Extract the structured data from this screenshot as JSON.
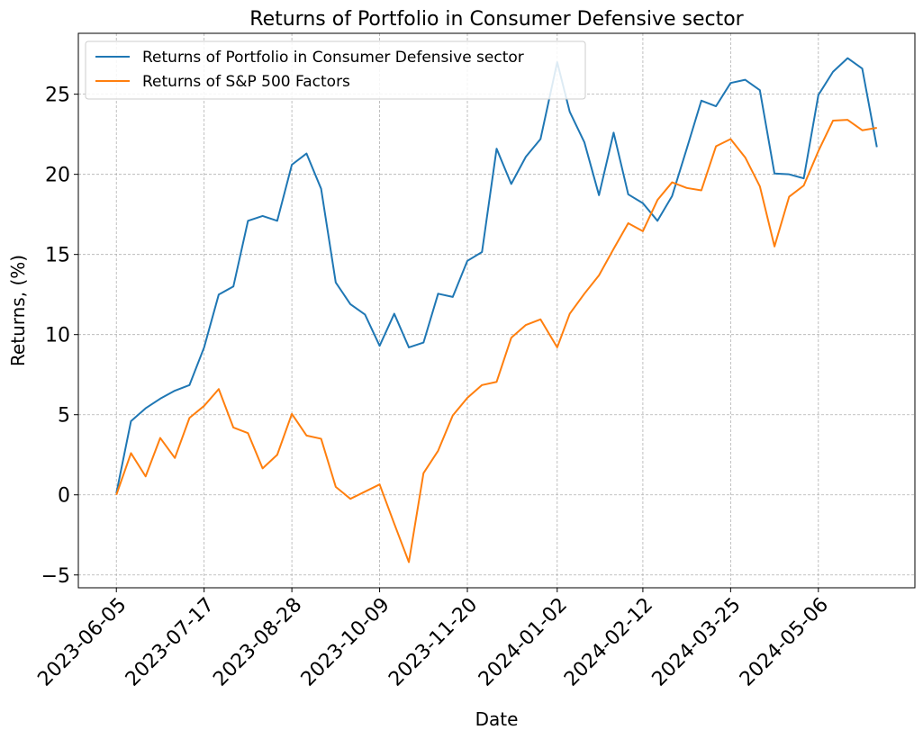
{
  "chart_data": {
    "type": "line",
    "title": "Returns of Portfolio in Consumer Defensive sector",
    "xlabel": "Date",
    "ylabel": "Returns, (%)",
    "ylim": [
      -5.8,
      28.8
    ],
    "yticks": [
      -5,
      0,
      5,
      10,
      15,
      20,
      25
    ],
    "ytick_labels": [
      "−5",
      "0",
      "5",
      "10",
      "15",
      "20",
      "25"
    ],
    "xticks": [
      "2023-06-05",
      "2023-07-17",
      "2023-08-28",
      "2023-10-09",
      "2023-11-20",
      "2024-01-02",
      "2024-02-12",
      "2024-03-25",
      "2024-05-06"
    ],
    "grid": true,
    "legend_position": "upper left",
    "x": [
      "2023-06-05",
      "2023-06-12",
      "2023-06-19",
      "2023-06-26",
      "2023-07-03",
      "2023-07-10",
      "2023-07-17",
      "2023-07-24",
      "2023-07-31",
      "2023-08-07",
      "2023-08-14",
      "2023-08-21",
      "2023-08-28",
      "2023-09-04",
      "2023-09-11",
      "2023-09-18",
      "2023-09-25",
      "2023-10-02",
      "2023-10-09",
      "2023-10-16",
      "2023-10-23",
      "2023-10-30",
      "2023-11-06",
      "2023-11-13",
      "2023-11-20",
      "2023-11-27",
      "2023-12-04",
      "2023-12-11",
      "2023-12-18",
      "2023-12-25",
      "2024-01-02",
      "2024-01-08",
      "2024-01-15",
      "2024-01-22",
      "2024-01-29",
      "2024-02-05",
      "2024-02-12",
      "2024-02-19",
      "2024-02-26",
      "2024-03-04",
      "2024-03-11",
      "2024-03-18",
      "2024-03-25",
      "2024-04-01",
      "2024-04-08",
      "2024-04-15",
      "2024-04-22",
      "2024-04-29",
      "2024-05-06",
      "2024-05-13",
      "2024-05-20",
      "2024-05-27",
      "2024-06-03"
    ],
    "series": [
      {
        "name": "Returns of Portfolio in Consumer Defensive sector",
        "color": "#1f77b4",
        "values": [
          0.1,
          4.6,
          5.4,
          6.0,
          6.5,
          6.85,
          9.2,
          12.5,
          13.0,
          17.1,
          17.4,
          17.1,
          20.6,
          21.3,
          19.1,
          13.25,
          11.9,
          11.25,
          9.3,
          11.3,
          9.2,
          9.5,
          12.55,
          12.35,
          14.6,
          15.15,
          21.6,
          19.4,
          21.1,
          22.2,
          27.0,
          23.9,
          22.0,
          18.7,
          22.6,
          18.75,
          18.2,
          17.1,
          18.65,
          21.6,
          24.6,
          24.25,
          25.7,
          25.9,
          25.25,
          20.05,
          20.0,
          19.75,
          24.95,
          26.4,
          27.25,
          26.6,
          21.7
        ]
      },
      {
        "name": "Returns of S&P 500 Factors",
        "color": "#ff7f0e",
        "values": [
          0.0,
          2.6,
          1.15,
          3.55,
          2.3,
          4.8,
          5.55,
          6.6,
          4.2,
          3.85,
          1.65,
          2.5,
          5.05,
          3.7,
          3.5,
          0.5,
          -0.25,
          0.2,
          0.65,
          -1.8,
          -4.2,
          1.35,
          2.75,
          4.95,
          6.05,
          6.85,
          7.05,
          9.8,
          10.6,
          10.95,
          9.2,
          11.3,
          12.55,
          13.7,
          15.35,
          16.95,
          16.45,
          18.4,
          19.5,
          19.15,
          19.0,
          21.75,
          22.2,
          21.05,
          19.25,
          15.5,
          18.6,
          19.3,
          21.45,
          23.35,
          23.4,
          22.75,
          22.9
        ]
      }
    ]
  }
}
